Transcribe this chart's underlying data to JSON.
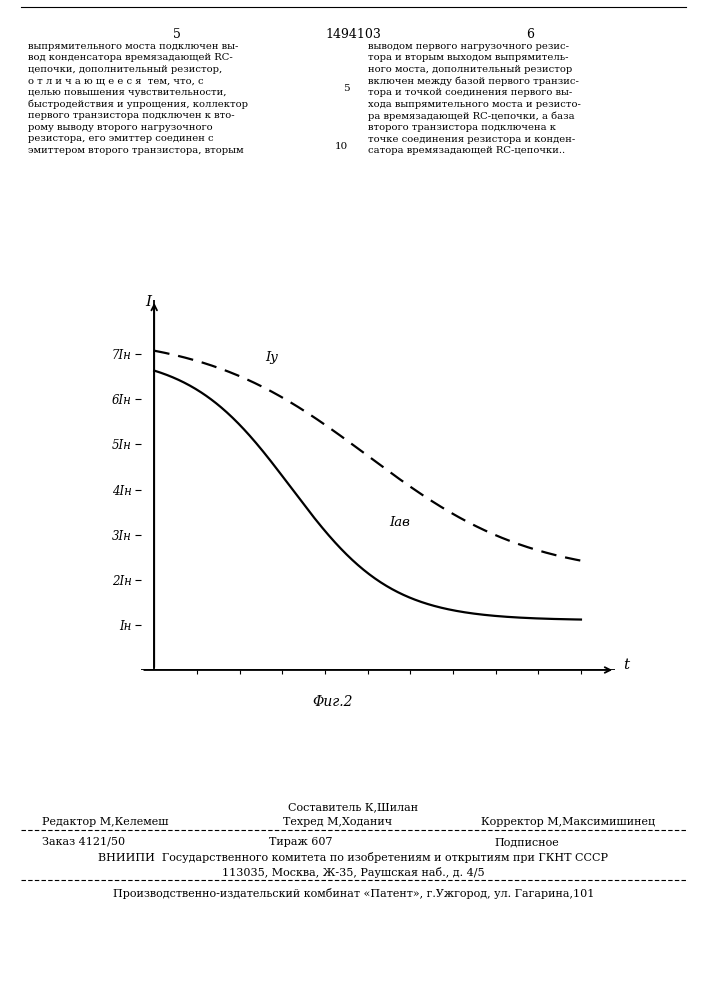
{
  "page_title": "1494103",
  "page_num_left": "5",
  "page_num_right": "6",
  "left_text": "выпрямительного моста подключен вы-\nвод конденсатора времязадающей RC-\nцепочки, дополнительный резистор,\nо т л и ч а ю щ е е с я  тем, что, с\nцелью повышения чувствительности,\nбыстродействия и упрощения, коллектор\nпервого транзистора подключен к вто-\nрому выводу второго нагрузочного\nрезистора, его эмиттер соединен с\nэмиттером второго транзистора, вторым",
  "right_text": "выводом первого нагрузочного резис-\nтора и вторым выходом выпрямитель-\nного моста, дополнительный резистор\nвключен между базой первого транзис-\nтора и точкой соединения первого вы-\nхода выпрямительного моста и резисто-\nра времязадающей RC-цепочки, а база\nвторого транзистора подключена к\nточке соединения резистора и конден-\nсатора времязадающей RC-цепочки..",
  "line_num_5": "5",
  "line_num_10": "10",
  "ylabel": "I",
  "xlabel": "t",
  "ytick_labels": [
    "Iн",
    "2Iн",
    "3Iн",
    "4Iн",
    "5Iн",
    "6Iн",
    "7Iн"
  ],
  "ytick_values": [
    1,
    2,
    3,
    4,
    5,
    6,
    7
  ],
  "curve_solid_label": "Iу",
  "curve_dashed_label": "Iав",
  "fig_caption": "Φиг.2",
  "footer_sestavitel": "Составитель К,Шилан",
  "footer_redaktor": "Редактор М,Келемеш",
  "footer_tehred": "Техред М,Ходанич",
  "footer_korrektor": "Корректор М,Максимишинец",
  "footer_zakaz": "Заказ 4121/50",
  "footer_tirazh": "Тираж 607",
  "footer_podpisnoe": "Подписное",
  "footer_vniiipi": "ВНИИПИ  Государственного комитета по изобретениям и открытиям при ГКНТ СССР",
  "footer_address": "113035, Москва, Ж-35, Раушская наб., д. 4/5",
  "footer_patent": "Производственно-издательский комбинат «Патент», г.Ужгород, ул. Гагарина,101",
  "bg_color": "#ffffff",
  "text_color": "#000000"
}
